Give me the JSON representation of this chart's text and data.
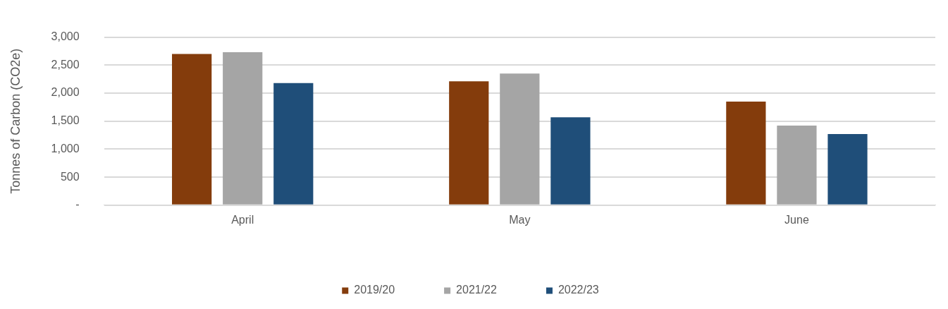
{
  "chart_data": {
    "type": "bar",
    "ylabel": "Tonnes of Carbon (CO2e)",
    "categories": [
      "April",
      "May",
      "June"
    ],
    "series": [
      {
        "name": "2019/20",
        "color": "#843c0c",
        "values": [
          2700,
          2210,
          1850
        ]
      },
      {
        "name": "2021/22",
        "color": "#a5a5a5",
        "values": [
          2730,
          2350,
          1420
        ]
      },
      {
        "name": "2022/23",
        "color": "#1f4e79",
        "values": [
          2180,
          1570,
          1270
        ]
      }
    ],
    "ylim": [
      0,
      3000
    ],
    "yticks": [
      {
        "value": 0,
        "label": "-"
      },
      500,
      {
        "value": 1000,
        "label": "1,000"
      },
      {
        "value": 1500,
        "label": "1,500"
      },
      {
        "value": 2000,
        "label": "2,000"
      },
      {
        "value": 2500,
        "label": "2,500"
      },
      {
        "value": 3000,
        "label": "3,000"
      }
    ],
    "grid": "y",
    "legend": "bottom"
  }
}
